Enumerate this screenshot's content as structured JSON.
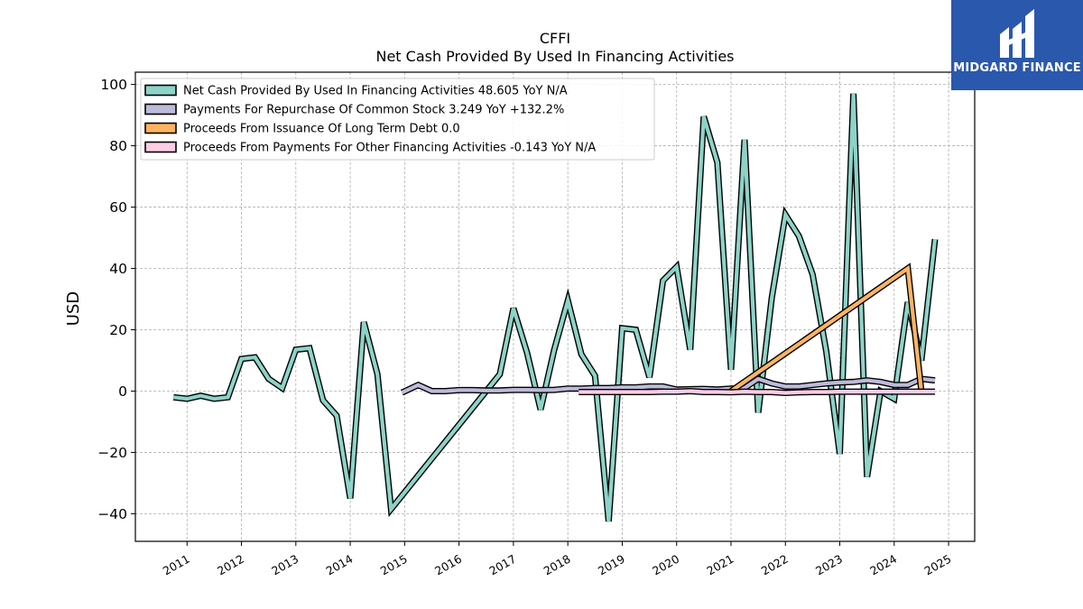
{
  "brand": {
    "name": "MIDGARD FINANCE",
    "color": "#2a58ad"
  },
  "chart_data": {
    "type": "line",
    "title": "CFFI",
    "subtitle": "Net Cash Provided By Used In Financing Activities",
    "xlabel": "",
    "ylabel": "USD",
    "xlim": [
      2010.05,
      2025.48
    ],
    "ylim": [
      -49,
      104
    ],
    "grid": true,
    "legend_position": "top-left",
    "x_ticks": [
      "2011",
      "2012",
      "2013",
      "2014",
      "2015",
      "2016",
      "2017",
      "2018",
      "2019",
      "2020",
      "2021",
      "2022",
      "2023",
      "2024",
      "2025"
    ],
    "y_ticks": [
      -40,
      -20,
      0,
      20,
      40,
      60,
      80,
      100
    ],
    "series": [
      {
        "name": "Net Cash Provided By Used In Financing Activities",
        "legend_label": "Net Cash Provided By Used In Financing Activities  48.605 YoY N/A",
        "color": "#8dd3c7",
        "x": [
          2010.75,
          2011.0,
          2011.25,
          2011.5,
          2011.75,
          2012.0,
          2012.25,
          2012.5,
          2012.75,
          2013.0,
          2013.25,
          2013.5,
          2013.75,
          2014.0,
          2014.25,
          2014.5,
          2014.75,
          2016.75,
          2017.0,
          2017.25,
          2017.5,
          2017.75,
          2018.0,
          2018.25,
          2018.5,
          2018.75,
          2019.0,
          2019.25,
          2019.5,
          2019.75,
          2020.0,
          2020.25,
          2020.5,
          2020.75,
          2021.0,
          2021.25,
          2021.5,
          2021.75,
          2022.0,
          2022.25,
          2022.5,
          2022.75,
          2023.0,
          2023.25,
          2023.5,
          2023.75,
          2024.0,
          2024.25,
          2024.5,
          2024.75
        ],
        "y": [
          -2,
          -2.5,
          -1.5,
          -2.5,
          -2,
          10.5,
          11,
          4,
          1,
          13.5,
          14,
          -3,
          -8,
          -35,
          22.5,
          5.5,
          -38.5,
          5.5,
          27,
          12.5,
          -6,
          13.5,
          29.5,
          12,
          5,
          -42.5,
          20.5,
          20,
          4.5,
          36,
          40.5,
          13.5,
          89.5,
          74.5,
          7,
          82,
          -7,
          30.5,
          57.5,
          50.5,
          38,
          13,
          -20.5,
          97,
          -28,
          0,
          -2.5,
          29,
          10,
          49.5
        ]
      },
      {
        "name": "Payments For Repurchase Of Common Stock",
        "legend_label": "Payments For Repurchase Of Common Stock  3.249 YoY +132.2%",
        "color": "#bebada",
        "x": [
          2014.95,
          2015.25,
          2015.5,
          2015.75,
          2016.0,
          2016.25,
          2016.5,
          2016.75,
          2017.0,
          2017.25,
          2017.5,
          2017.75,
          2018.0,
          2018.25,
          2018.5,
          2018.75,
          2019.0,
          2019.25,
          2019.5,
          2019.75,
          2020.0,
          2020.25,
          2020.5,
          2020.75,
          2021.0,
          2021.25,
          2021.5,
          2021.75,
          2022.0,
          2022.25,
          2022.5,
          2022.75,
          2023.0,
          2023.25,
          2023.5,
          2023.75,
          2024.0,
          2024.25,
          2024.5,
          2024.75
        ],
        "y": [
          -0.5,
          2,
          0,
          0,
          0.3,
          0.3,
          0.2,
          0.2,
          0.4,
          0.4,
          0.3,
          0.4,
          0.8,
          0.8,
          1,
          1,
          1.2,
          1.2,
          1.5,
          1.5,
          0.5,
          0.6,
          0.7,
          0.5,
          0.8,
          1,
          4,
          2.5,
          1.5,
          1.5,
          2,
          2.5,
          2.8,
          3,
          3.5,
          3,
          2,
          2,
          4,
          3.5
        ]
      },
      {
        "name": "Proceeds From Issuance Of Long Term Debt",
        "legend_label": "Proceeds From Issuance Of Long Term Debt  0.0",
        "color": "#fdb462",
        "x": [
          2021.0,
          2024.25,
          2024.5
        ],
        "y": [
          0,
          40,
          0
        ]
      },
      {
        "name": "Proceeds From Payments For Other Financing Activities",
        "legend_label": "Proceeds From Payments For Other Financing Activities  -0.143 YoY N/A",
        "color": "#fccde5",
        "x": [
          2018.2,
          2018.5,
          2018.75,
          2019.0,
          2019.25,
          2019.5,
          2019.75,
          2020.0,
          2020.25,
          2020.5,
          2020.75,
          2021.0,
          2021.25,
          2021.5,
          2021.75,
          2022.0,
          2022.25,
          2022.5,
          2022.75,
          2023.0,
          2023.25,
          2023.5,
          2023.75,
          2024.0,
          2024.25,
          2024.5,
          2024.75
        ],
        "y": [
          -0.3,
          -0.3,
          -0.3,
          -0.3,
          -0.3,
          -0.3,
          -0.2,
          -0.2,
          0,
          -0.3,
          -0.3,
          -0.4,
          -0.2,
          -0.3,
          -0.3,
          -0.6,
          -0.4,
          -0.3,
          -0.3,
          -0.2,
          -0.2,
          -0.2,
          -0.2,
          -0.2,
          -0.2,
          -0.2,
          -0.2
        ]
      }
    ]
  }
}
